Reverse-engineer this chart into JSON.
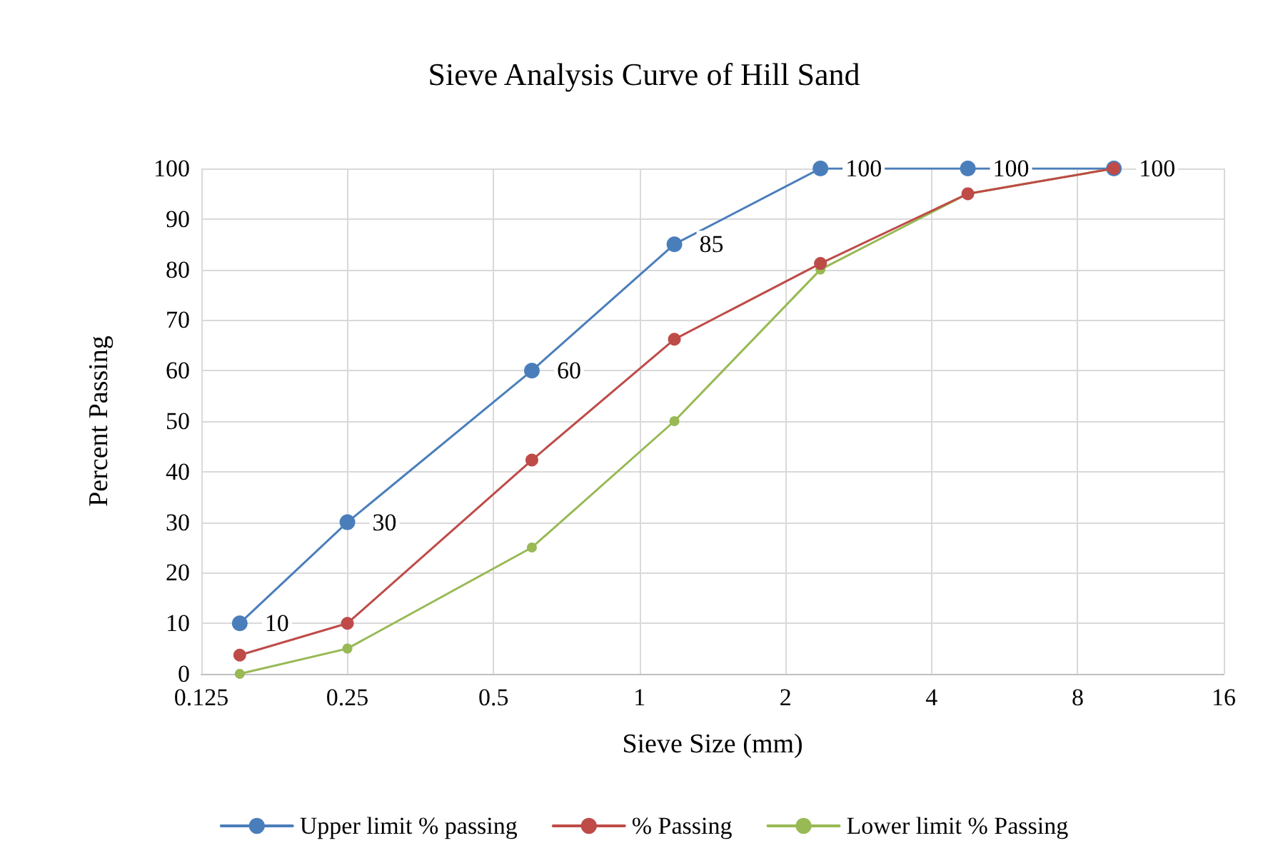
{
  "chart_data": {
    "type": "line",
    "title": "Sieve Analysis Curve of Hill Sand",
    "xlabel": "Sieve Size (mm)",
    "ylabel": "Percent Passing",
    "x": [
      0.15,
      0.25,
      0.6,
      1.18,
      2.36,
      4.75,
      9.5
    ],
    "series": [
      {
        "name": "Upper limit % passing",
        "color": "#4a7ebb",
        "values": [
          10,
          30,
          60,
          85,
          100,
          100,
          100
        ],
        "value_labels": [
          "10",
          "30",
          "60",
          "85",
          "100",
          "100",
          "100"
        ]
      },
      {
        "name": "% Passing",
        "color": "#be4b48",
        "values": [
          3.7,
          10,
          42.3,
          66.2,
          81.2,
          95,
          100
        ]
      },
      {
        "name": "Lower limit % Passing",
        "color": "#98b954",
        "values": [
          0,
          5,
          25,
          50,
          80,
          95,
          100
        ]
      }
    ],
    "log": "x",
    "xlim": [
      0.125,
      16
    ],
    "xticks": [
      0.125,
      0.25,
      0.5,
      1,
      2,
      4,
      8,
      16
    ],
    "ylim": [
      0,
      100
    ],
    "yticks": [
      0,
      10,
      20,
      30,
      40,
      50,
      60,
      70,
      80,
      90,
      100
    ],
    "grid": true,
    "legend": "bottom",
    "marker": "circle",
    "line_style": "solid"
  }
}
